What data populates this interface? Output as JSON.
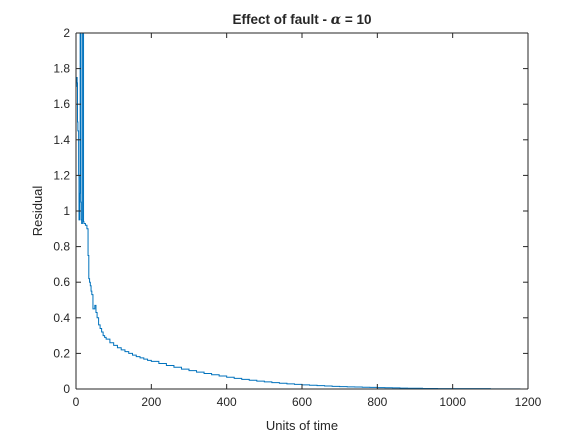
{
  "chart_data": {
    "type": "line",
    "title": "Effect of fault - α = 10",
    "title_parts": {
      "prefix": "Effect of fault - ",
      "symbol": "α",
      "suffix": " = 10"
    },
    "xlabel": "Units of time",
    "ylabel": "Residual",
    "xlim": [
      0,
      1200
    ],
    "ylim": [
      0,
      2
    ],
    "xticks": [
      0,
      200,
      400,
      600,
      800,
      1000,
      1200
    ],
    "yticks": [
      0,
      0.2,
      0.4,
      0.6,
      0.8,
      1,
      1.2,
      1.4,
      1.6,
      1.8,
      2
    ],
    "xtick_labels": [
      "0",
      "200",
      "400",
      "600",
      "800",
      "1000",
      "1200"
    ],
    "ytick_labels": [
      "0",
      "0.2",
      "0.4",
      "0.6",
      "0.8",
      "1",
      "1.2",
      "1.4",
      "1.6",
      "1.8",
      "2"
    ],
    "grid": false,
    "line_style": "stairs",
    "series": [
      {
        "color": "#0072BD",
        "x": [
          0,
          1,
          2,
          3,
          4,
          5,
          6,
          7,
          8,
          9,
          10,
          11,
          12,
          13,
          14,
          15,
          16,
          17,
          18,
          19,
          20,
          21,
          22,
          23,
          24,
          25,
          26,
          27,
          28,
          29,
          30,
          32,
          34,
          36,
          38,
          40,
          42,
          45,
          48,
          50,
          53,
          56,
          60,
          64,
          68,
          72,
          76,
          80,
          90,
          100,
          110,
          120,
          130,
          140,
          150,
          160,
          170,
          180,
          190,
          200,
          220,
          240,
          260,
          280,
          300,
          320,
          340,
          360,
          380,
          400,
          420,
          440,
          460,
          480,
          500,
          520,
          540,
          560,
          580,
          600,
          620,
          640,
          660,
          680,
          700,
          720,
          740,
          760,
          780,
          800,
          820,
          840,
          860,
          880,
          900,
          920,
          940,
          960,
          980,
          1000,
          1100,
          1180
        ],
        "y": [
          1.7,
          1.73,
          1.75,
          1.72,
          1.5,
          1.45,
          1.45,
          1.2,
          0.95,
          0.95,
          1.1,
          2.1,
          2.1,
          1.05,
          0.95,
          0.93,
          0.93,
          2.1,
          2.1,
          2.1,
          0.94,
          0.93,
          0.93,
          0.93,
          0.93,
          0.92,
          0.92,
          0.92,
          0.92,
          0.9,
          0.9,
          0.75,
          0.62,
          0.6,
          0.58,
          0.55,
          0.53,
          0.45,
          0.45,
          0.47,
          0.43,
          0.4,
          0.36,
          0.34,
          0.32,
          0.3,
          0.29,
          0.28,
          0.26,
          0.245,
          0.232,
          0.22,
          0.21,
          0.2,
          0.19,
          0.182,
          0.175,
          0.168,
          0.161,
          0.155,
          0.143,
          0.132,
          0.122,
          0.112,
          0.103,
          0.095,
          0.087,
          0.08,
          0.073,
          0.066,
          0.06,
          0.054,
          0.049,
          0.044,
          0.04,
          0.036,
          0.032,
          0.029,
          0.026,
          0.023,
          0.021,
          0.019,
          0.017,
          0.015,
          0.013,
          0.012,
          0.011,
          0.01,
          0.009,
          0.008,
          0.007,
          0.006,
          0.005,
          0.004,
          0.004,
          0.003,
          0.003,
          0.002,
          0.002,
          0.002,
          0.001,
          0.001
        ]
      }
    ]
  }
}
